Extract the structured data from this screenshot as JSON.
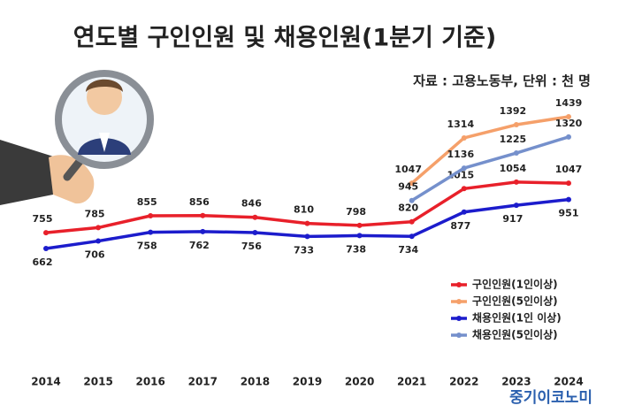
{
  "chart_data": {
    "type": "line",
    "title": "연도별 구인인원 및 채용인원(1분기 기준)",
    "subtitle": "자료 : 고용노동부, 단위 : 천 명",
    "watermark": "중기이코노미",
    "categories": [
      "2014",
      "2015",
      "2016",
      "2017",
      "2018",
      "2019",
      "2020",
      "2021",
      "2022",
      "2023",
      "2024"
    ],
    "series": [
      {
        "name": "구인인원(1인이상)",
        "color": "#e8202a",
        "values": [
          755,
          785,
          855,
          856,
          846,
          810,
          798,
          820,
          1015,
          1054,
          1047
        ]
      },
      {
        "name": "구인인원(5인이상)",
        "color": "#f5a06a",
        "values": [
          null,
          null,
          null,
          null,
          null,
          null,
          null,
          1047,
          1314,
          1392,
          1439
        ]
      },
      {
        "name": "채용인원(1인 이상)",
        "color": "#1c1ccc",
        "values": [
          662,
          706,
          758,
          762,
          756,
          733,
          738,
          734,
          877,
          917,
          951
        ]
      },
      {
        "name": "채용인원(5인이상)",
        "color": "#7590cc",
        "values": [
          null,
          null,
          null,
          null,
          null,
          null,
          null,
          945,
          1136,
          1225,
          1320
        ]
      }
    ],
    "legend": "lower right"
  }
}
